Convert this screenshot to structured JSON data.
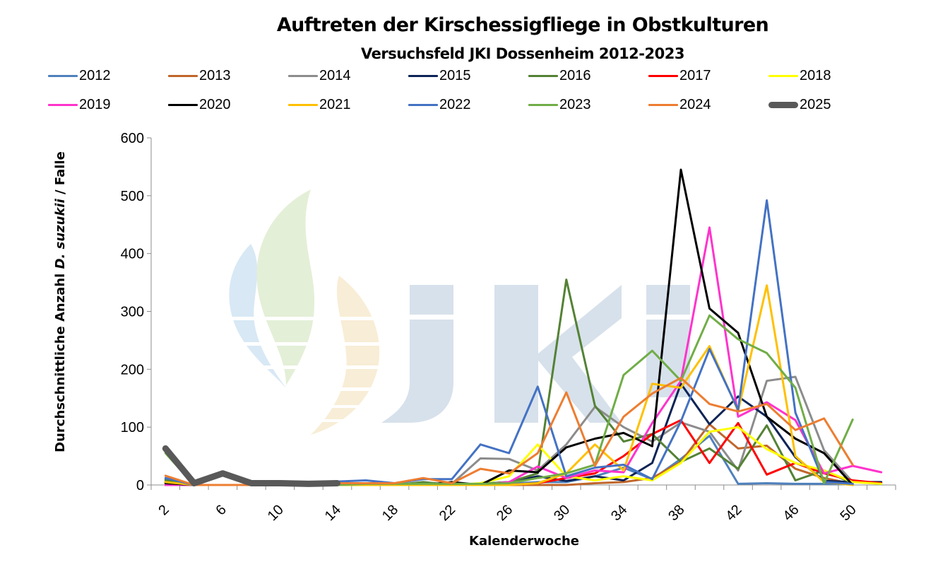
{
  "chart_data": {
    "type": "line",
    "title": "Auftreten der Kirschessigfliege in Obstkulturen",
    "subtitle": "Versuchsfeld JKI Dossenheim 2012-2023",
    "xlabel": "Kalenderwoche",
    "ylabel_parts": [
      "Durchschnittliche Anzahl ",
      "D. suzukii",
      " / Falle"
    ],
    "ylim": [
      0,
      600
    ],
    "yticks": [
      0,
      100,
      200,
      300,
      400,
      500,
      600
    ],
    "x": [
      2,
      4,
      6,
      8,
      10,
      12,
      14,
      16,
      18,
      20,
      22,
      24,
      26,
      28,
      30,
      32,
      34,
      36,
      38,
      40,
      42,
      44,
      46,
      48,
      50,
      52
    ],
    "xtick_labels": [
      "2",
      "6",
      "10",
      "14",
      "18",
      "22",
      "26",
      "30",
      "34",
      "38",
      "42",
      "46",
      "50"
    ],
    "grid": false,
    "legend_position": "top",
    "watermark": "JKI",
    "series": [
      {
        "name": "2012",
        "color": "#4f81bd",
        "width": 3,
        "values": [
          10,
          0,
          0,
          0,
          0,
          0,
          0,
          0,
          0,
          0,
          0,
          0,
          2,
          5,
          5,
          15,
          30,
          10,
          45,
          85,
          2,
          3,
          2,
          2,
          1,
          null
        ]
      },
      {
        "name": "2013",
        "color": "#c0662b",
        "width": 3,
        "values": [
          5,
          0,
          0,
          0,
          0,
          0,
          0,
          0,
          0,
          0,
          0,
          0,
          0,
          0,
          0,
          3,
          5,
          12,
          40,
          105,
          63,
          68,
          28,
          12,
          2,
          null
        ]
      },
      {
        "name": "2014",
        "color": "#8c8c8c",
        "width": 3,
        "values": [
          5,
          0,
          0,
          0,
          0,
          0,
          0,
          0,
          0,
          0,
          2,
          46,
          45,
          25,
          70,
          135,
          100,
          75,
          108,
          92,
          25,
          180,
          187,
          60,
          5,
          null
        ]
      },
      {
        "name": "2015",
        "color": "#0d2456",
        "width": 3,
        "values": [
          3,
          0,
          0,
          0,
          0,
          0,
          0,
          0,
          0,
          0,
          0,
          2,
          5,
          15,
          7,
          15,
          8,
          38,
          175,
          105,
          153,
          118,
          48,
          7,
          5,
          5
        ]
      },
      {
        "name": "2016",
        "color": "#548235",
        "width": 3,
        "values": [
          8,
          0,
          0,
          0,
          0,
          0,
          0,
          0,
          0,
          5,
          0,
          2,
          5,
          20,
          355,
          137,
          75,
          88,
          40,
          63,
          28,
          103,
          8,
          25,
          3,
          null
        ]
      },
      {
        "name": "2017",
        "color": "#ff0000",
        "width": 3,
        "values": [
          0,
          0,
          0,
          0,
          0,
          0,
          0,
          0,
          0,
          0,
          0,
          0,
          0,
          3,
          12,
          20,
          50,
          88,
          112,
          38,
          107,
          18,
          38,
          20,
          8,
          3
        ]
      },
      {
        "name": "2018",
        "color": "#ffff00",
        "width": 3,
        "values": [
          3,
          0,
          0,
          0,
          0,
          0,
          0,
          0,
          0,
          0,
          0,
          3,
          15,
          70,
          15,
          8,
          15,
          8,
          38,
          92,
          100,
          62,
          38,
          25,
          5,
          2
        ]
      },
      {
        "name": "2019",
        "color": "#ff33cc",
        "width": 3,
        "values": [
          0,
          0,
          0,
          0,
          0,
          0,
          0,
          0,
          0,
          0,
          0,
          0,
          5,
          32,
          12,
          25,
          22,
          107,
          180,
          445,
          118,
          143,
          112,
          20,
          33,
          22
        ]
      },
      {
        "name": "2020",
        "color": "#000000",
        "width": 3,
        "values": [
          3,
          0,
          0,
          0,
          0,
          0,
          0,
          0,
          0,
          0,
          5,
          0,
          25,
          22,
          65,
          80,
          90,
          67,
          545,
          305,
          263,
          118,
          80,
          55,
          0,
          null
        ]
      },
      {
        "name": "2021",
        "color": "#ffc000",
        "width": 3,
        "values": [
          5,
          0,
          0,
          0,
          0,
          0,
          0,
          0,
          0,
          0,
          0,
          0,
          0,
          3,
          20,
          70,
          25,
          175,
          168,
          240,
          128,
          345,
          50,
          5,
          0,
          null
        ]
      },
      {
        "name": "2022",
        "color": "#4472c4",
        "width": 3,
        "values": [
          12,
          0,
          0,
          0,
          0,
          0,
          6,
          8,
          3,
          10,
          10,
          70,
          55,
          170,
          15,
          30,
          35,
          10,
          110,
          235,
          130,
          492,
          125,
          5,
          2,
          null
        ]
      },
      {
        "name": "2023",
        "color": "#70ad47",
        "width": 3,
        "values": [
          55,
          0,
          0,
          0,
          0,
          0,
          0,
          2,
          2,
          2,
          2,
          2,
          3,
          12,
          20,
          35,
          190,
          232,
          180,
          293,
          252,
          228,
          168,
          3,
          113,
          null
        ]
      },
      {
        "name": "2024",
        "color": "#ed7d31",
        "width": 3,
        "values": [
          16,
          0,
          0,
          0,
          0,
          0,
          3,
          3,
          3,
          12,
          3,
          28,
          20,
          55,
          160,
          33,
          118,
          158,
          185,
          140,
          127,
          140,
          95,
          115,
          35,
          null
        ]
      },
      {
        "name": "2025",
        "color": "#595959",
        "width": 9,
        "values": [
          63,
          3,
          20,
          3,
          3,
          2,
          3,
          null,
          null,
          null,
          null,
          null,
          null,
          null,
          null,
          null,
          null,
          null,
          null,
          null,
          null,
          null,
          null,
          null,
          null,
          null
        ]
      }
    ]
  }
}
